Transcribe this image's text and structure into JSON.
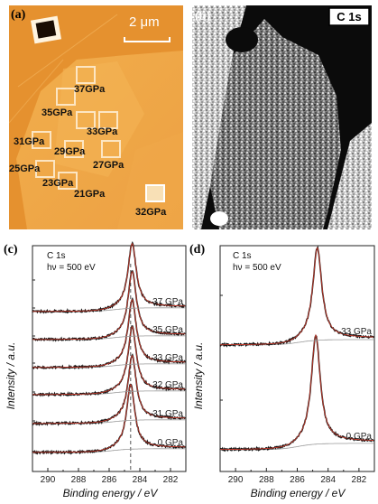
{
  "panel_a": {
    "label": "(a)",
    "scalebar": "2 μm",
    "pressure_labels": [
      "37GPa",
      "35GPa",
      "33GPa",
      "31GPa",
      "29GPa",
      "27GPa",
      "25GPa",
      "23GPa",
      "21GPa",
      "32GPa"
    ]
  },
  "panel_b": {
    "label": "(b)",
    "badge": "C 1s"
  },
  "panel_c": {
    "label": "(c)",
    "line1": "C 1s",
    "line2": "hν = 500 eV"
  },
  "panel_d": {
    "label": "(d)",
    "line1": "C 1s",
    "line2": "hν = 500 eV"
  },
  "chart_data": [
    {
      "type": "line",
      "xlabel": "Binding energy / eV",
      "ylabel": "Intensity / a.u.",
      "xlim": [
        291,
        281
      ],
      "x_ticks": [
        290,
        288,
        286,
        284,
        282
      ],
      "series": [
        {
          "name": "0 GPa",
          "peak": 284.6
        },
        {
          "name": "31 GPa",
          "peak": 284.5
        },
        {
          "name": "32 GPa",
          "peak": 284.5
        },
        {
          "name": "33 GPa",
          "peak": 284.5
        },
        {
          "name": "35 GPa",
          "peak": 284.5
        },
        {
          "name": "37 GPa",
          "peak": 284.5
        }
      ],
      "reference_line_x": 284.6
    },
    {
      "type": "line",
      "xlabel": "Binding energy / eV",
      "ylabel": "Intensity / a.u.",
      "xlim": [
        291,
        281
      ],
      "x_ticks": [
        290,
        288,
        286,
        284,
        282
      ],
      "series": [
        {
          "name": "0 GPa",
          "peak": 284.8
        },
        {
          "name": "33 GPa",
          "peak": 284.7
        }
      ]
    }
  ],
  "colors": {
    "afm_orange": "#e58e2c",
    "fit_red": "#c0392b",
    "data_black": "#111111"
  }
}
